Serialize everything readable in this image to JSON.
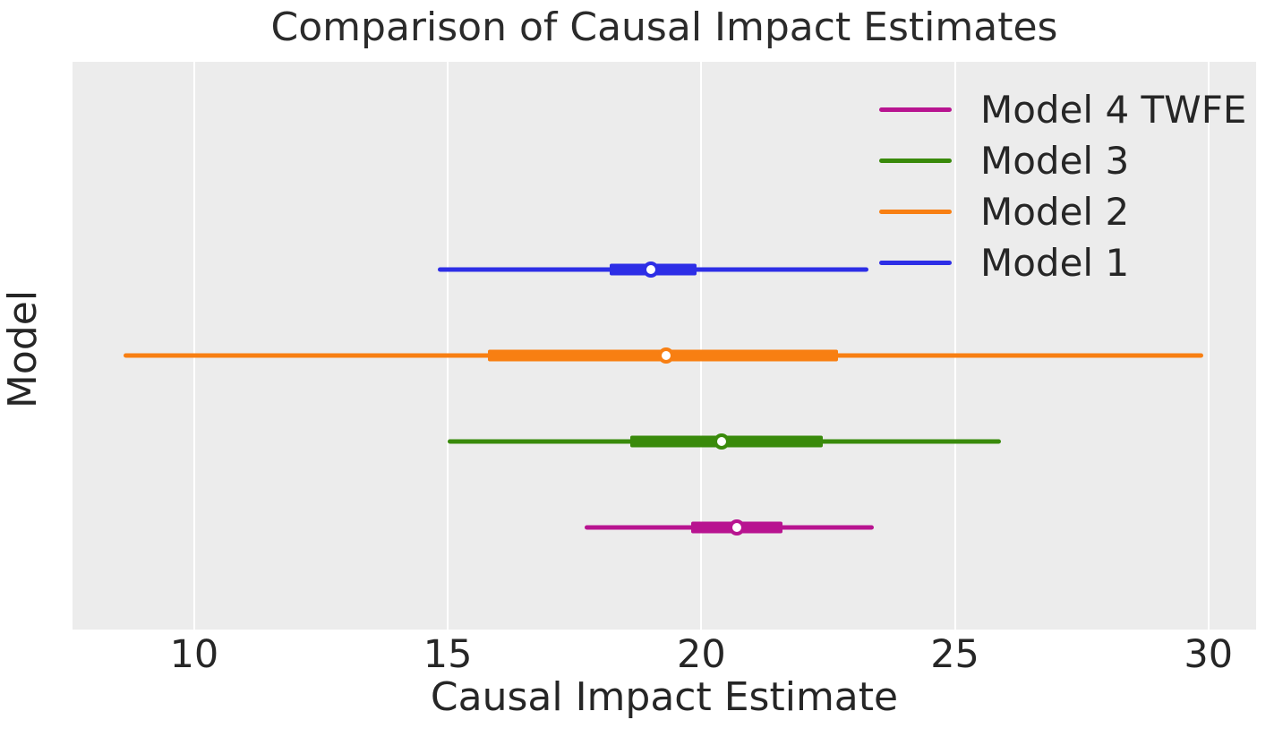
{
  "chart_data": {
    "type": "forest",
    "title": "Comparison of Causal Impact Estimates",
    "xlabel": "Causal Impact Estimate",
    "ylabel": "Model",
    "xlim": [
      7.6,
      30.94
    ],
    "xticks": [
      10,
      15,
      20,
      25,
      30
    ],
    "grid": "vertical white gridlines only",
    "plot_background": "#ececec",
    "grid_color": "#ffffff",
    "text_color": "#262626",
    "legend_position": "upper right",
    "legend_labels": [
      "Model 4 TWFE",
      "Model 3",
      "Model 2",
      "Model 1"
    ],
    "series": [
      {
        "name": "Model 1",
        "color": "#2d2ee6",
        "estimate": 19.0,
        "ci_inner": [
          18.2,
          19.9
        ],
        "ci_outer": [
          14.8,
          23.3
        ],
        "y_frac": 0.366
      },
      {
        "name": "Model 2",
        "color": "#f87f12",
        "estimate": 19.3,
        "ci_inner": [
          15.8,
          22.7
        ],
        "ci_outer": [
          8.6,
          29.9
        ],
        "y_frac": 0.517
      },
      {
        "name": "Model 3",
        "color": "#398a0b",
        "estimate": 20.4,
        "ci_inner": [
          18.6,
          22.4
        ],
        "ci_outer": [
          15.0,
          25.9
        ],
        "y_frac": 0.669
      },
      {
        "name": "Model 4 TWFE",
        "color": "#b81490",
        "estimate": 20.7,
        "ci_inner": [
          19.8,
          21.6
        ],
        "ci_outer": [
          17.7,
          23.4
        ],
        "y_frac": 0.82
      }
    ]
  }
}
